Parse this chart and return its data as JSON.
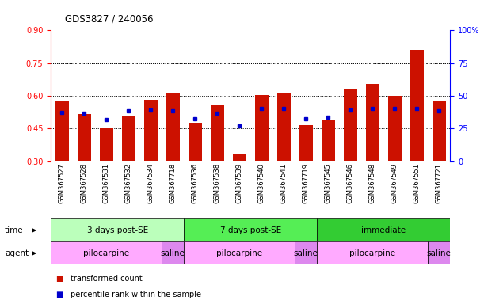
{
  "title": "GDS3827 / 240056",
  "samples": [
    "GSM367527",
    "GSM367528",
    "GSM367531",
    "GSM367532",
    "GSM367534",
    "GSM367718",
    "GSM367536",
    "GSM367538",
    "GSM367539",
    "GSM367540",
    "GSM367541",
    "GSM367719",
    "GSM367545",
    "GSM367546",
    "GSM367548",
    "GSM367549",
    "GSM367551",
    "GSM367721"
  ],
  "red_values": [
    0.575,
    0.515,
    0.45,
    0.51,
    0.58,
    0.615,
    0.475,
    0.555,
    0.33,
    0.605,
    0.615,
    0.465,
    0.49,
    0.63,
    0.655,
    0.6,
    0.81,
    0.575
  ],
  "blue_values": [
    0.525,
    0.52,
    0.49,
    0.53,
    0.535,
    0.53,
    0.495,
    0.52,
    0.46,
    0.54,
    0.54,
    0.495,
    0.5,
    0.535,
    0.54,
    0.54,
    0.54,
    0.53
  ],
  "y_min": 0.3,
  "y_max": 0.9,
  "y_ticks_red": [
    0.3,
    0.45,
    0.6,
    0.75,
    0.9
  ],
  "y_ticks_blue": [
    0,
    25,
    50,
    75,
    100
  ],
  "grid_vals": [
    0.45,
    0.6,
    0.75
  ],
  "time_groups": [
    {
      "label": "3 days post-SE",
      "start": 0,
      "end": 6,
      "color": "#bbffbb"
    },
    {
      "label": "7 days post-SE",
      "start": 6,
      "end": 12,
      "color": "#55ee55"
    },
    {
      "label": "immediate",
      "start": 12,
      "end": 18,
      "color": "#33cc33"
    }
  ],
  "agent_groups": [
    {
      "label": "pilocarpine",
      "start": 0,
      "end": 5,
      "color": "#ffaaff"
    },
    {
      "label": "saline",
      "start": 5,
      "end": 6,
      "color": "#dd88ee"
    },
    {
      "label": "pilocarpine",
      "start": 6,
      "end": 11,
      "color": "#ffaaff"
    },
    {
      "label": "saline",
      "start": 11,
      "end": 12,
      "color": "#dd88ee"
    },
    {
      "label": "pilocarpine",
      "start": 12,
      "end": 17,
      "color": "#ffaaff"
    },
    {
      "label": "saline",
      "start": 17,
      "end": 18,
      "color": "#dd88ee"
    }
  ],
  "bar_color": "#cc1100",
  "dot_color": "#0000cc",
  "legend_red": "transformed count",
  "legend_blue": "percentile rank within the sample",
  "label_left_time": "time",
  "label_left_agent": "agent"
}
